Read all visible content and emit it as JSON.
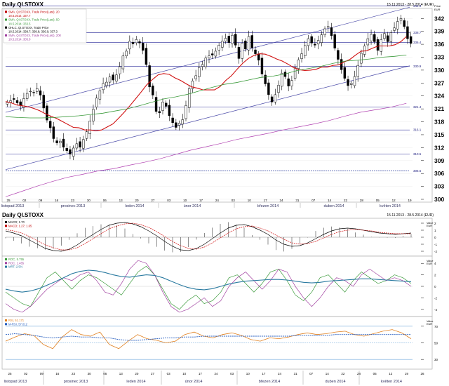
{
  "main": {
    "title": "Daily QI.STOXX",
    "range": "15.11.2013 - 28.5.2014 (EUR)",
    "price_caption": [
      "Price",
      "EUR"
    ],
    "legend": [
      {
        "text": "SMA, QI.STOXX, Trade Price(Last), 20",
        "color": "#c00000"
      },
      {
        "text": "18.5.2014; 337.7",
        "color": "#c00000"
      },
      {
        "text": "SMA, QI.STOXX, Trade Price(Last), 50",
        "color": "#3a9a3a"
      },
      {
        "text": "18.5.2014; 333.5",
        "color": "#3a9a3a"
      },
      {
        "text": "OHLC, QI.STOXX, Trade Price",
        "color": "#000000"
      },
      {
        "text": "18.5.2014; 338.7; 339.8; 336.0; 337.3",
        "color": "#000000"
      },
      {
        "text": "SMA, QI.STOXX, Trade Price(Last), 200",
        "color": "#a040a0"
      },
      {
        "text": "18.5.2014; 305.8",
        "color": "#a040a0"
      }
    ],
    "level_labels": [
      "344.9",
      "338.7",
      "336.4",
      "330.9",
      "321.4",
      "316.1",
      "310.5",
      "306.6"
    ],
    "y_ticks": [
      "342",
      "339",
      "336",
      "333",
      "330",
      "327",
      "324",
      "321",
      "318",
      "315",
      "312",
      "309",
      "306",
      "303",
      "300"
    ],
    "x_day_ticks": [
      "25",
      "02",
      "09",
      "16",
      "23",
      "30",
      "06",
      "13",
      "20",
      "27",
      "03",
      "10",
      "17",
      "24",
      "03",
      "10",
      "17",
      "24",
      "31",
      "07",
      "14",
      "22",
      "28",
      "05",
      "12",
      "19"
    ],
    "month_labels": [
      "listopad 2013",
      "prosinec 2013",
      "leden 2014",
      "únor 2014",
      "březen 2014",
      "duben 2014",
      "květen 2014"
    ]
  },
  "macd": {
    "title": "Daily QI.STOXX",
    "range": "15.11.2013 - 28.5.2014 (EUR)",
    "legend": [
      {
        "text": "MACD; 1.70",
        "color": "#000000"
      },
      {
        "text": "MACD; 1.27; 1.65",
        "color": "#c00000"
      }
    ],
    "caption": [
      "Value",
      "EUR"
    ],
    "y_ticks": [
      "2",
      "1",
      "0",
      "-1",
      "-2"
    ]
  },
  "roc": {
    "legend": [
      {
        "text": "ROC, 5.755",
        "color": "#3a9a3a"
      },
      {
        "text": "ROC, 1.465",
        "color": "#a040a0"
      },
      {
        "text": "MRT; 2.5%",
        "color": "#2a7aa0"
      }
    ],
    "caption": [
      "Value",
      "EUR"
    ],
    "y_ticks": [
      "4",
      "2",
      "0",
      "-2",
      "-4"
    ]
  },
  "rsi": {
    "legend": [
      {
        "text": "RSI, 51.171",
        "color": "#e08020"
      },
      {
        "text": "M-RSI, 57.012",
        "color": "#2a60c0"
      }
    ],
    "caption": [
      "Value",
      "EUR"
    ],
    "y_ticks": [
      "70",
      "50",
      "30"
    ]
  },
  "bottom_axis": {
    "x_day_ticks": [
      "25",
      "02",
      "09",
      "16",
      "23",
      "30",
      "06",
      "13",
      "20",
      "27",
      "03",
      "10",
      "17",
      "24",
      "03",
      "10",
      "17",
      "24",
      "31",
      "07",
      "14",
      "22",
      "28",
      "05",
      "12",
      "19",
      "26"
    ],
    "month_labels": [
      "listopad 2013",
      "prosinec 2013",
      "leden 2014",
      "únor 2014",
      "březen 2014",
      "duben 2014",
      "květen 2014"
    ]
  },
  "chart_data": [
    {
      "type": "candlestick",
      "title": "Daily QI.STOXX",
      "ylim": [
        300,
        344
      ],
      "ohlc_close": [
        322.5,
        322.9,
        323.2,
        322.4,
        321.8,
        323.4,
        324.6,
        325.1,
        324.8,
        325.7,
        324.2,
        321.2,
        318.4,
        316.6,
        314.1,
        313.1,
        313.5,
        312.1,
        311.3,
        310.5,
        311.9,
        312.9,
        312.1,
        313.9,
        315.7,
        318.2,
        320.9,
        323.5,
        325.2,
        326.9,
        327.2,
        328.4,
        327.7,
        328.9,
        330.8,
        333.3,
        334.4,
        336.7,
        336.1,
        337.1,
        336.3,
        334.6,
        331.3,
        326.1,
        324.2,
        320.4,
        320.1,
        322.6,
        321.6,
        319.4,
        317.8,
        316.7,
        317.7,
        318.5,
        321.8,
        325.7,
        327.5,
        328.7,
        330.6,
        331.3,
        332.8,
        333.3,
        333.5,
        334.4,
        335.8,
        336.7,
        337.4,
        336.4,
        338.1,
        335.8,
        332.7,
        336.3,
        334.9,
        337.8,
        335.2,
        333.8,
        332.3,
        329.1,
        326.8,
        324.3,
        322.6,
        324.3,
        326.5,
        329.3,
        328.5,
        326.3,
        327.6,
        330.6,
        332.4,
        333.8,
        335.7,
        337.3,
        336.3,
        335.8,
        336.9,
        338.2,
        339.6,
        340.1,
        338.0,
        335.1,
        332.5,
        330.1,
        328.1,
        326.4,
        326.9,
        328.5,
        331.1,
        333.9,
        335.6,
        337.3,
        338.3,
        336.6,
        334.6,
        337.1,
        338.5,
        336.6,
        338.7,
        339.8,
        341.3,
        342.0,
        340.1,
        337.3,
        336.2
      ],
      "sma20": [
        322.7,
        322.4,
        321.9,
        321.7,
        321.5,
        321.1,
        320.6,
        319.9,
        319.3,
        318.8,
        318.1,
        317.4,
        316.7,
        316.6,
        316.1,
        316.1,
        315.9,
        316.1,
        316.8,
        317.5,
        318.8,
        320.2,
        321.7,
        323.3,
        324.9,
        326.6,
        327.8,
        328.9,
        329.2,
        329.0,
        328.2,
        327.6,
        326.8,
        326.1,
        325.8,
        325.4,
        325.4,
        325.4,
        326.2,
        327.6,
        328.7,
        330.2,
        331.6,
        332.7,
        333.4,
        333.8,
        333.7,
        333.2,
        332.6,
        332.1,
        331.4,
        330.6,
        330.1,
        329.9,
        330.0,
        330.2,
        330.7,
        330.7,
        331.1,
        331.2,
        331.9,
        332.5,
        333.5,
        334.4,
        334.5,
        335.1,
        335.6,
        335.6,
        335.6,
        335.9,
        336.6,
        337.8
      ],
      "sma50": [
        319.2,
        319.0,
        318.9,
        318.9,
        319.0,
        319.2,
        319.4,
        319.7,
        320.0,
        320.5,
        321.0,
        321.7,
        322.5,
        323.3,
        323.8,
        324.4,
        325.2,
        326.0,
        326.7,
        327.1,
        327.7,
        328.3,
        328.6,
        329.1,
        329.9,
        330.4,
        330.9,
        331.6,
        332.1,
        332.3,
        332.6,
        333.0,
        333.2,
        333.5
      ],
      "sma200": [
        300.6,
        301.8,
        303.0,
        304.1,
        305.1,
        305.8,
        306.6,
        307.1,
        307.9,
        308.6,
        309.4,
        310.4,
        311.4,
        312.2,
        313.0,
        313.9,
        314.6,
        315.3,
        316.1,
        316.8,
        317.5,
        318.3,
        319.3,
        320.2,
        320.8,
        321.4,
        322.3
      ],
      "levels": [
        344.9,
        338.7,
        336.4,
        330.9,
        321.4,
        316.1,
        310.5,
        306.6
      ]
    },
    {
      "type": "line",
      "title": "MACD",
      "ylim": [
        -2.5,
        2.5
      ],
      "series": [
        {
          "name": "MACD; 1.70",
          "values": [
            0.9,
            0.6,
            0.2,
            -0.4,
            -1.0,
            -1.6,
            -1.9,
            -2.0,
            -1.7,
            -1.1,
            -0.3,
            0.4,
            1.1,
            1.7,
            2.0,
            2.1,
            1.9,
            1.5,
            0.9,
            0.2,
            -0.6,
            -1.3,
            -1.8,
            -1.9,
            -1.6,
            -1.0,
            -0.2,
            0.6,
            1.3,
            1.7,
            1.8,
            1.5,
            1.0,
            0.4,
            -0.4,
            -1.0,
            -1.3,
            -1.2,
            -0.8,
            -0.2,
            0.4,
            0.9,
            1.2,
            1.3,
            1.2,
            1.0,
            0.8,
            0.6,
            0.5,
            0.4,
            0.5,
            0.6
          ]
        },
        {
          "name": "MACD; 1.27; 1.65",
          "values": [
            1.1,
            0.9,
            0.6,
            0.1,
            -0.5,
            -1.1,
            -1.5,
            -1.8,
            -1.8,
            -1.5,
            -0.9,
            -0.2,
            0.5,
            1.2,
            1.6,
            1.9,
            2.0,
            1.8,
            1.4,
            0.8,
            0.1,
            -0.6,
            -1.2,
            -1.6,
            -1.7,
            -1.4,
            -0.8,
            -0.1,
            0.6,
            1.2,
            1.5,
            1.6,
            1.3,
            0.9,
            0.3,
            -0.3,
            -0.8,
            -1.0,
            -0.9,
            -0.6,
            -0.1,
            0.4,
            0.8,
            1.0,
            1.1,
            1.0,
            0.9,
            0.7,
            0.6,
            0.5,
            0.5,
            0.5
          ]
        }
      ]
    },
    {
      "type": "line",
      "title": "ROC",
      "ylim": [
        -5,
        5
      ],
      "series": [
        {
          "name": "ROC, 5.755",
          "values": [
            -1.0,
            -2.0,
            -3.0,
            -3.5,
            -1.0,
            1.5,
            2.5,
            1.0,
            -0.5,
            1.0,
            2.0,
            1.5,
            0.5,
            -0.5,
            -1.5,
            0.5,
            2.5,
            3.5,
            2.0,
            -0.5,
            -3.0,
            -4.0,
            -2.5,
            -1.5,
            -3.0,
            -2.5,
            -1.0,
            1.5,
            2.0,
            0.5,
            -1.0,
            0.5,
            2.5,
            3.0,
            1.0,
            -1.5,
            -2.5,
            -1.0,
            1.5,
            2.0,
            0.5,
            -1.0,
            1.0,
            2.5,
            1.5,
            0.5,
            1.0,
            2.0,
            1.5,
            0.5
          ]
        },
        {
          "name": "ROC, 1.465",
          "values": [
            -3.0,
            -4.0,
            -4.5,
            -3.5,
            -2.0,
            -0.5,
            0.5,
            1.5,
            1.0,
            2.0,
            2.5,
            1.0,
            -1.0,
            -1.5,
            0.5,
            3.0,
            4.5,
            4.0,
            2.0,
            -1.0,
            -3.5,
            -4.5,
            -4.0,
            -3.0,
            -2.0,
            -3.5,
            -2.5,
            0.0,
            1.5,
            2.5,
            1.0,
            -0.5,
            1.0,
            3.0,
            2.5,
            0.0,
            -2.0,
            -3.5,
            -2.0,
            0.0,
            1.5,
            1.0,
            0.0,
            2.0,
            3.0,
            2.0,
            1.0,
            1.5,
            1.0,
            0.0
          ]
        },
        {
          "name": "MRT; 2.5%",
          "values": [
            -0.5,
            -0.8,
            -1.0,
            -0.8,
            -0.4,
            0.2,
            0.8,
            1.5,
            2.2,
            2.6,
            2.8,
            2.7,
            2.4,
            2.0,
            1.7,
            1.6,
            1.8,
            2.0,
            1.9,
            1.5,
            0.9,
            0.3,
            -0.2,
            -0.5,
            -0.6,
            -0.4,
            0.0,
            0.4,
            0.7,
            0.9,
            1.0,
            1.1,
            1.2,
            1.2,
            1.1,
            0.9,
            0.7,
            0.6,
            0.7,
            0.9,
            1.0,
            1.1,
            1.2,
            1.3,
            1.3,
            1.2,
            1.1,
            1.0,
            0.9,
            0.8
          ]
        }
      ]
    },
    {
      "type": "line",
      "title": "RSI",
      "ylim": [
        20,
        80
      ],
      "series": [
        {
          "name": "RSI, 51.171",
          "values": [
            52,
            57,
            61,
            59,
            48,
            43,
            57,
            66,
            60,
            58,
            63,
            48,
            43,
            52,
            60,
            55,
            53,
            50,
            52,
            60,
            63,
            58,
            56,
            60,
            62,
            59,
            54,
            52,
            56,
            55,
            57,
            60,
            62,
            60,
            61,
            63,
            64,
            60,
            58,
            61,
            64,
            66,
            62,
            55
          ]
        },
        {
          "name": "M-RSI, 57.012",
          "values": [
            60,
            61,
            60,
            59,
            57,
            56,
            57,
            58,
            57,
            57,
            56,
            56,
            54,
            53,
            53,
            54,
            55,
            56,
            56,
            57,
            57,
            58,
            58,
            58,
            58,
            58,
            58,
            58,
            58,
            58,
            58,
            59,
            59,
            59,
            59,
            60,
            60,
            60,
            60,
            60,
            60,
            60,
            60,
            60
          ]
        }
      ]
    }
  ]
}
